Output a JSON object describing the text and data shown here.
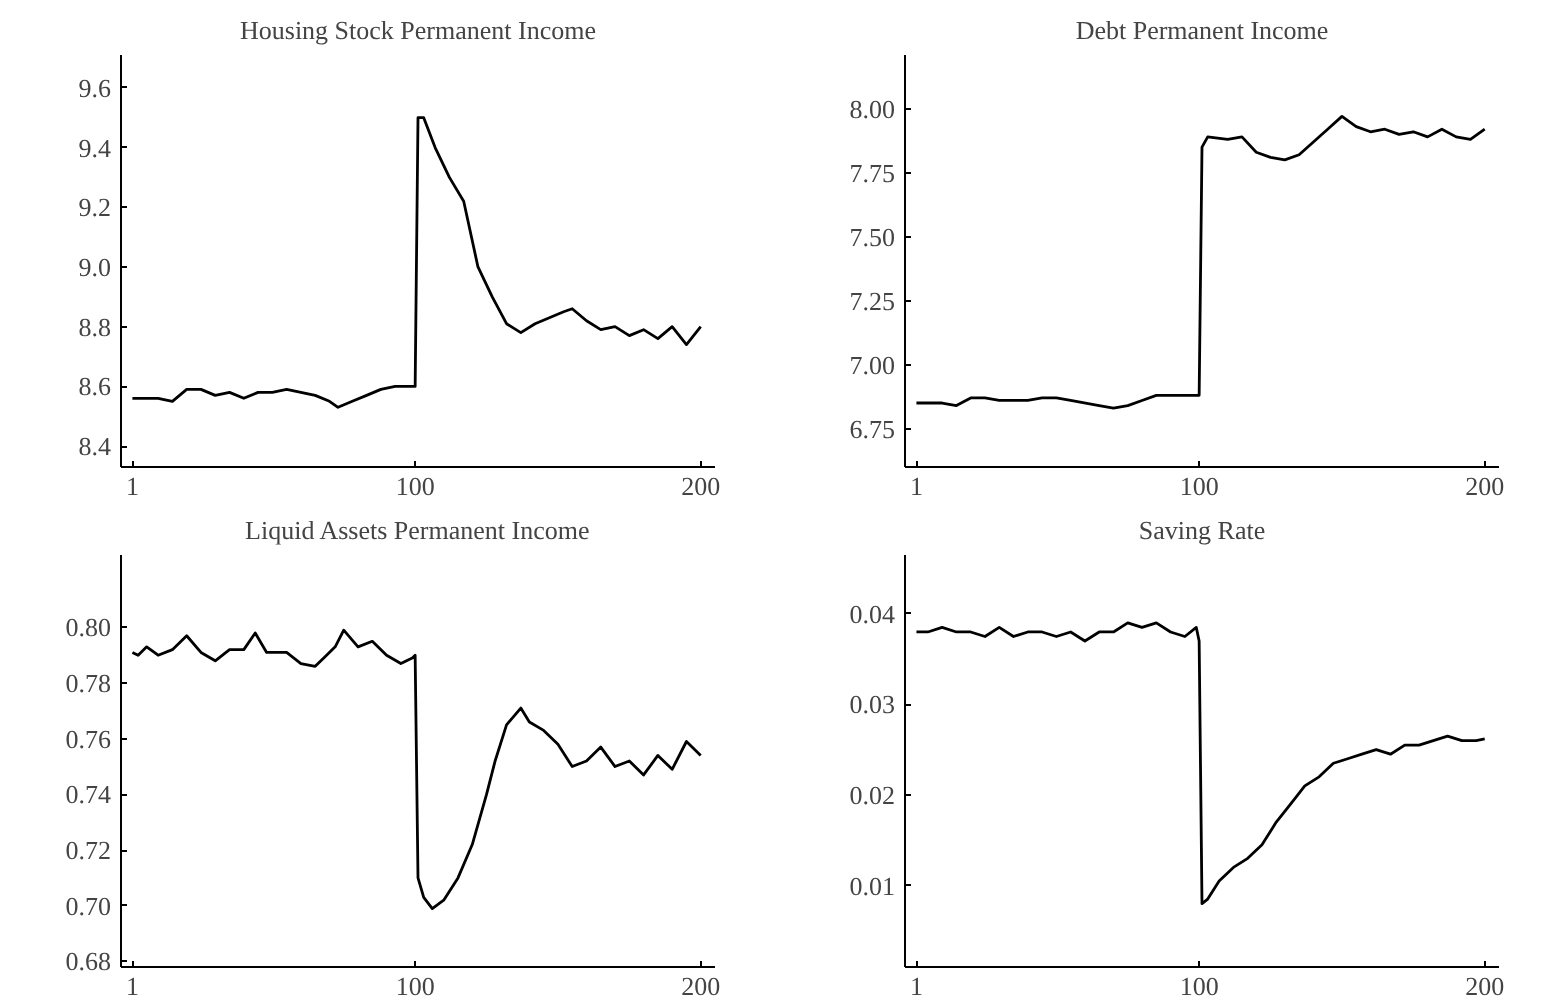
{
  "chart_data": [
    {
      "type": "line",
      "title": "Housing Stock Permanent Income",
      "xlim": [
        -3,
        205
      ],
      "xticks": [
        1,
        100,
        200
      ],
      "ylim": [
        8.33,
        9.71
      ],
      "yticks": [
        {
          "value": 8.4,
          "label": "8.4"
        },
        {
          "value": 8.6,
          "label": "8.6"
        },
        {
          "value": 8.8,
          "label": "8.8"
        },
        {
          "value": 9.0,
          "label": "9.0"
        },
        {
          "value": 9.2,
          "label": "9.2"
        },
        {
          "value": 9.4,
          "label": "9.4"
        },
        {
          "value": 9.6,
          "label": "9.6"
        }
      ],
      "grid": false,
      "series": [
        {
          "color": "#000000",
          "x": [
            1,
            5,
            10,
            15,
            20,
            25,
            30,
            35,
            40,
            45,
            50,
            55,
            60,
            65,
            70,
            73,
            78,
            83,
            88,
            93,
            99,
            100,
            101,
            103,
            107,
            112,
            117,
            122,
            127,
            132,
            137,
            142,
            147,
            152,
            155,
            160,
            165,
            170,
            175,
            180,
            185,
            190,
            195,
            200
          ],
          "values": [
            8.56,
            8.56,
            8.56,
            8.55,
            8.59,
            8.59,
            8.57,
            8.58,
            8.56,
            8.58,
            8.58,
            8.59,
            8.58,
            8.57,
            8.55,
            8.53,
            8.55,
            8.57,
            8.59,
            8.6,
            8.6,
            8.6,
            9.5,
            9.5,
            9.4,
            9.3,
            9.22,
            9.0,
            8.9,
            8.81,
            8.78,
            8.81,
            8.83,
            8.85,
            8.86,
            8.82,
            8.79,
            8.8,
            8.77,
            8.79,
            8.76,
            8.8,
            8.74,
            8.8
          ]
        }
      ]
    },
    {
      "type": "line",
      "title": "Debt Permanent Income",
      "xlim": [
        -3,
        205
      ],
      "xticks": [
        1,
        100,
        200
      ],
      "ylim": [
        6.6,
        8.21
      ],
      "yticks": [
        {
          "value": 6.75,
          "label": "6.75"
        },
        {
          "value": 7.0,
          "label": "7.00"
        },
        {
          "value": 7.25,
          "label": "7.25"
        },
        {
          "value": 7.5,
          "label": "7.50"
        },
        {
          "value": 7.75,
          "label": "7.75"
        },
        {
          "value": 8.0,
          "label": "8.00"
        }
      ],
      "grid": false,
      "series": [
        {
          "color": "#000000",
          "x": [
            1,
            10,
            15,
            20,
            25,
            30,
            40,
            45,
            50,
            55,
            65,
            70,
            75,
            80,
            85,
            99,
            100,
            101,
            103,
            110,
            115,
            120,
            125,
            130,
            135,
            140,
            145,
            150,
            155,
            160,
            165,
            170,
            175,
            180,
            185,
            190,
            195,
            200
          ],
          "values": [
            6.85,
            6.85,
            6.84,
            6.87,
            6.87,
            6.86,
            6.86,
            6.87,
            6.87,
            6.86,
            6.84,
            6.83,
            6.84,
            6.86,
            6.88,
            6.88,
            6.88,
            7.85,
            7.89,
            7.88,
            7.89,
            7.83,
            7.81,
            7.8,
            7.82,
            7.87,
            7.92,
            7.97,
            7.93,
            7.91,
            7.92,
            7.9,
            7.91,
            7.89,
            7.92,
            7.89,
            7.88,
            7.92
          ]
        }
      ]
    },
    {
      "type": "line",
      "title": "Liquid Assets Permanent Income",
      "xlim": [
        -3,
        205
      ],
      "xticks": [
        1,
        100,
        200
      ],
      "ylim": [
        0.678,
        0.826
      ],
      "yticks": [
        {
          "value": 0.68,
          "label": "0.68"
        },
        {
          "value": 0.7,
          "label": "0.70"
        },
        {
          "value": 0.72,
          "label": "0.72"
        },
        {
          "value": 0.74,
          "label": "0.74"
        },
        {
          "value": 0.76,
          "label": "0.76"
        },
        {
          "value": 0.78,
          "label": "0.78"
        },
        {
          "value": 0.8,
          "label": "0.80"
        }
      ],
      "grid": false,
      "series": [
        {
          "color": "#000000",
          "x": [
            1,
            3,
            6,
            10,
            15,
            20,
            25,
            30,
            35,
            40,
            44,
            48,
            55,
            60,
            65,
            68,
            72,
            75,
            80,
            85,
            90,
            95,
            99,
            100,
            101,
            103,
            106,
            110,
            115,
            120,
            125,
            128,
            132,
            137,
            140,
            145,
            150,
            155,
            160,
            165,
            170,
            175,
            180,
            185,
            190,
            195,
            200
          ],
          "values": [
            0.791,
            0.79,
            0.793,
            0.79,
            0.792,
            0.797,
            0.791,
            0.788,
            0.792,
            0.792,
            0.798,
            0.791,
            0.791,
            0.787,
            0.786,
            0.789,
            0.793,
            0.799,
            0.793,
            0.795,
            0.79,
            0.787,
            0.789,
            0.79,
            0.71,
            0.703,
            0.699,
            0.702,
            0.71,
            0.722,
            0.74,
            0.752,
            0.765,
            0.771,
            0.766,
            0.763,
            0.758,
            0.75,
            0.752,
            0.757,
            0.75,
            0.752,
            0.747,
            0.754,
            0.749,
            0.759,
            0.754
          ]
        }
      ]
    },
    {
      "type": "line",
      "title": "Saving Rate",
      "xlim": [
        -3,
        205
      ],
      "xticks": [
        1,
        100,
        200
      ],
      "ylim": [
        0.001,
        0.0465
      ],
      "yticks": [
        {
          "value": 0.01,
          "label": "0.01"
        },
        {
          "value": 0.02,
          "label": "0.02"
        },
        {
          "value": 0.03,
          "label": "0.03"
        },
        {
          "value": 0.04,
          "label": "0.04"
        }
      ],
      "grid": false,
      "series": [
        {
          "color": "#000000",
          "x": [
            1,
            5,
            10,
            15,
            20,
            25,
            30,
            35,
            40,
            45,
            50,
            55,
            60,
            65,
            70,
            75,
            80,
            85,
            90,
            95,
            99,
            100,
            101,
            103,
            107,
            112,
            117,
            122,
            127,
            132,
            137,
            142,
            147,
            152,
            157,
            162,
            167,
            172,
            177,
            182,
            187,
            192,
            197,
            200
          ],
          "values": [
            0.038,
            0.038,
            0.0385,
            0.038,
            0.038,
            0.0375,
            0.0385,
            0.0375,
            0.038,
            0.038,
            0.0375,
            0.038,
            0.037,
            0.038,
            0.038,
            0.039,
            0.0385,
            0.039,
            0.038,
            0.0375,
            0.0385,
            0.037,
            0.008,
            0.0085,
            0.0105,
            0.012,
            0.013,
            0.0145,
            0.017,
            0.019,
            0.021,
            0.022,
            0.0235,
            0.024,
            0.0245,
            0.025,
            0.0245,
            0.0255,
            0.0255,
            0.026,
            0.0265,
            0.026,
            0.026,
            0.0262
          ]
        }
      ]
    }
  ]
}
